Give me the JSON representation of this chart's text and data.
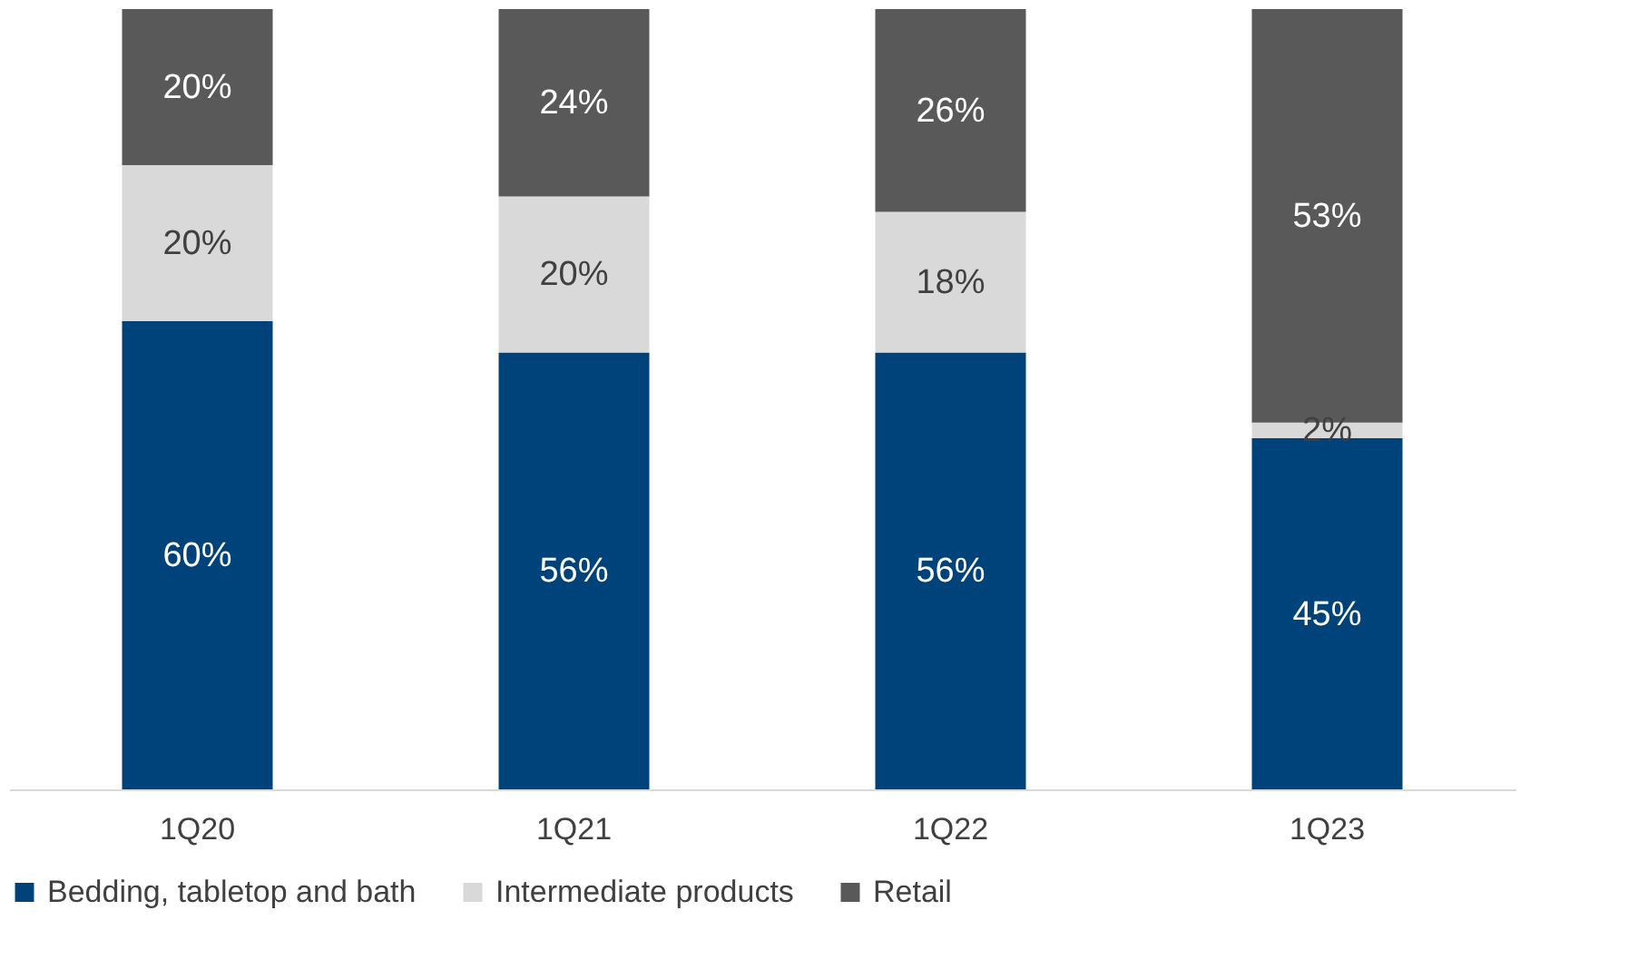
{
  "chart_data": {
    "type": "bar",
    "stacked": true,
    "legend": "bottom",
    "categories": [
      "1Q20",
      "1Q21",
      "1Q22",
      "1Q23"
    ],
    "series": [
      {
        "name": "Bedding, tabletop and bath",
        "color": "#00427a",
        "values": [
          60,
          56,
          56,
          45
        ],
        "value_labels": [
          "60%",
          "56%",
          "56%",
          "45%"
        ]
      },
      {
        "name": "Intermediate products",
        "color": "#d9d9d9",
        "values": [
          20,
          20,
          18,
          2
        ],
        "value_labels": [
          "20%",
          "20%",
          "18%",
          "2%"
        ]
      },
      {
        "name": "Retail",
        "color": "#595959",
        "values": [
          20,
          24,
          26,
          53
        ],
        "value_labels": [
          "20%",
          "24%",
          "26%",
          "53%"
        ]
      }
    ]
  }
}
